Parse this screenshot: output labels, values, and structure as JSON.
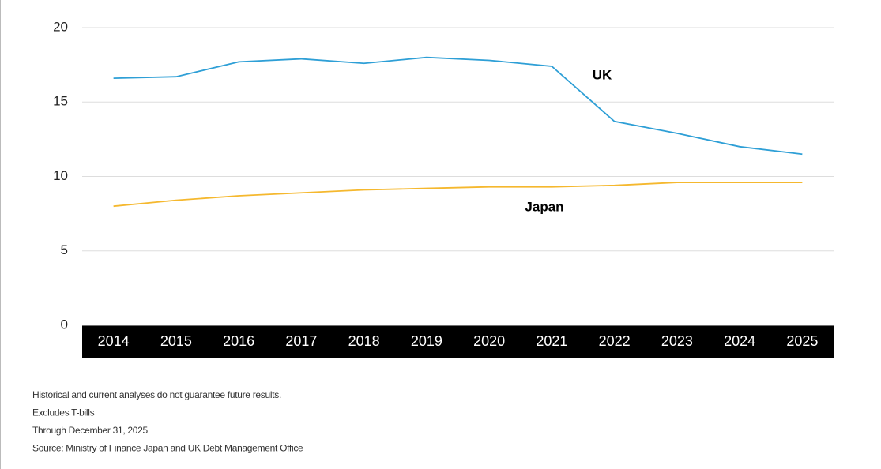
{
  "chart_data": {
    "type": "line",
    "categories": [
      "2014",
      "2015",
      "2016",
      "2017",
      "2018",
      "2019",
      "2020",
      "2021",
      "2022",
      "2023",
      "2024",
      "2025"
    ],
    "series": [
      {
        "name": "UK",
        "color": "#2e9fd6",
        "values": [
          16.6,
          16.7,
          17.7,
          17.9,
          17.6,
          18.0,
          17.8,
          17.4,
          13.7,
          12.9,
          12.0,
          11.5
        ]
      },
      {
        "name": "Japan",
        "color": "#f5b82e",
        "values": [
          8.0,
          8.4,
          8.7,
          8.9,
          9.1,
          9.2,
          9.3,
          9.3,
          9.4,
          9.6,
          9.6,
          9.6
        ]
      }
    ],
    "ylim": [
      0,
      20
    ],
    "yticks": [
      0,
      5,
      10,
      15,
      20
    ],
    "grid": true,
    "notes": [
      "Historical and current analyses do not guarantee future results.",
      "Excludes T-bills",
      "Through December 31, 2025",
      "Source: Ministry of Finance Japan and UK Debt Management Office"
    ]
  }
}
